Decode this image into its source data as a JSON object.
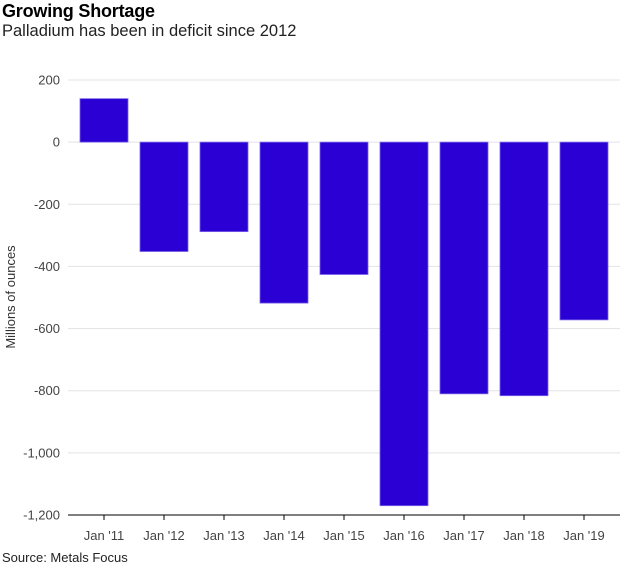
{
  "chart_data": {
    "type": "bar",
    "title": "Growing Shortage",
    "subtitle": "Palladium has been in deficit since 2012",
    "xlabel": "",
    "ylabel": "Millions of ounces",
    "categories": [
      "Jan '11",
      "Jan '12",
      "Jan '13",
      "Jan '14",
      "Jan '15",
      "Jan '16",
      "Jan '17",
      "Jan '18",
      "Jan '19"
    ],
    "values": [
      140,
      -352,
      -288,
      -518,
      -426,
      -1170,
      -810,
      -816,
      -572
    ],
    "ylim": [
      -1200,
      200
    ],
    "yticks": [
      200,
      0,
      -200,
      -400,
      -600,
      -800,
      -1000,
      -1200
    ],
    "ytick_labels": [
      "200",
      "0",
      "-200",
      "-400",
      "-600",
      "-800",
      "-1,000",
      "-1,200"
    ],
    "grid": true,
    "bar_color": "#2a00d5",
    "source": "Source: Metals Focus"
  }
}
